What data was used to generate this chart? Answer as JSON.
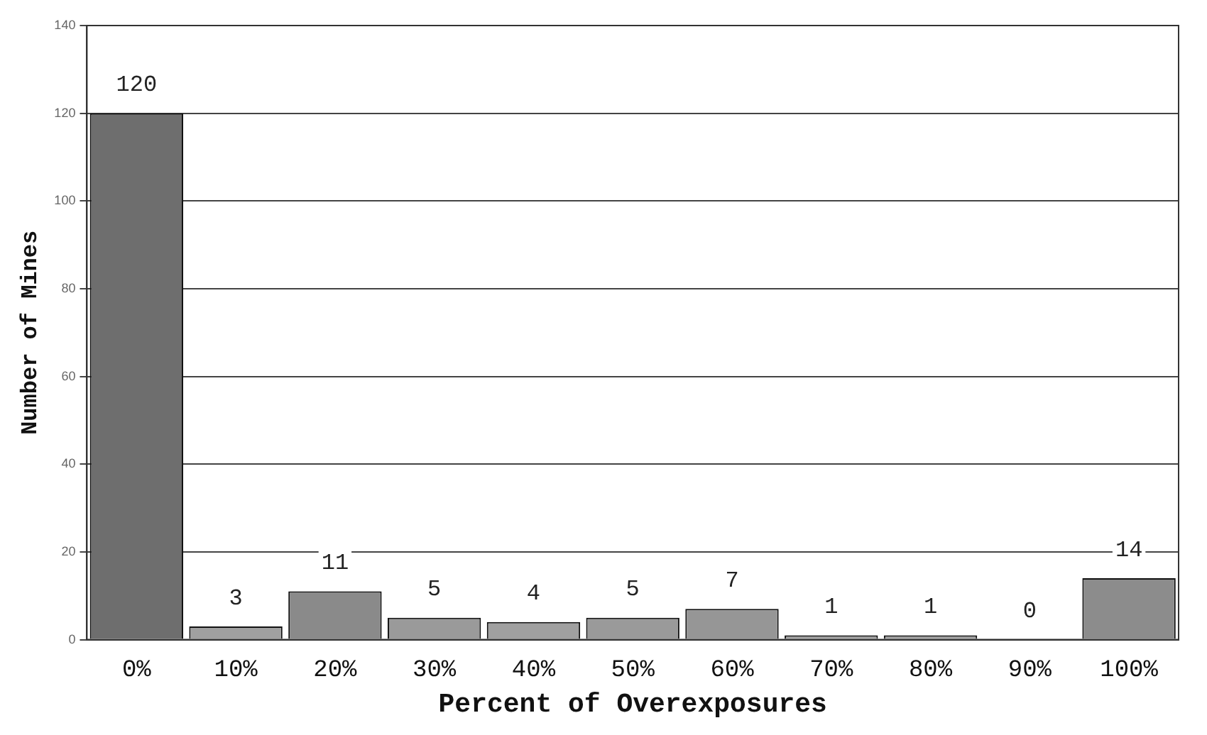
{
  "chart_data": {
    "type": "bar",
    "xlabel": "Percent of Overexposures",
    "ylabel": "Number of Mines",
    "categories": [
      "0%",
      "10%",
      "20%",
      "30%",
      "40%",
      "50%",
      "60%",
      "70%",
      "80%",
      "90%",
      "100%"
    ],
    "values": [
      120,
      3,
      11,
      5,
      4,
      5,
      7,
      1,
      1,
      0,
      14
    ],
    "colors": [
      "#6e6e6e",
      "#a0a0a0",
      "#8a8a8a",
      "#9a9a9a",
      "#a0a0a0",
      "#9a9a9a",
      "#969696",
      "#a0a0a0",
      "#a0a0a0",
      "#a0a0a0",
      "#8c8c8c"
    ],
    "ylim": [
      0,
      140
    ],
    "yticks": [
      0,
      20,
      40,
      60,
      80,
      100,
      120,
      140
    ],
    "grid": "y",
    "data_labels": true,
    "legend": false
  }
}
